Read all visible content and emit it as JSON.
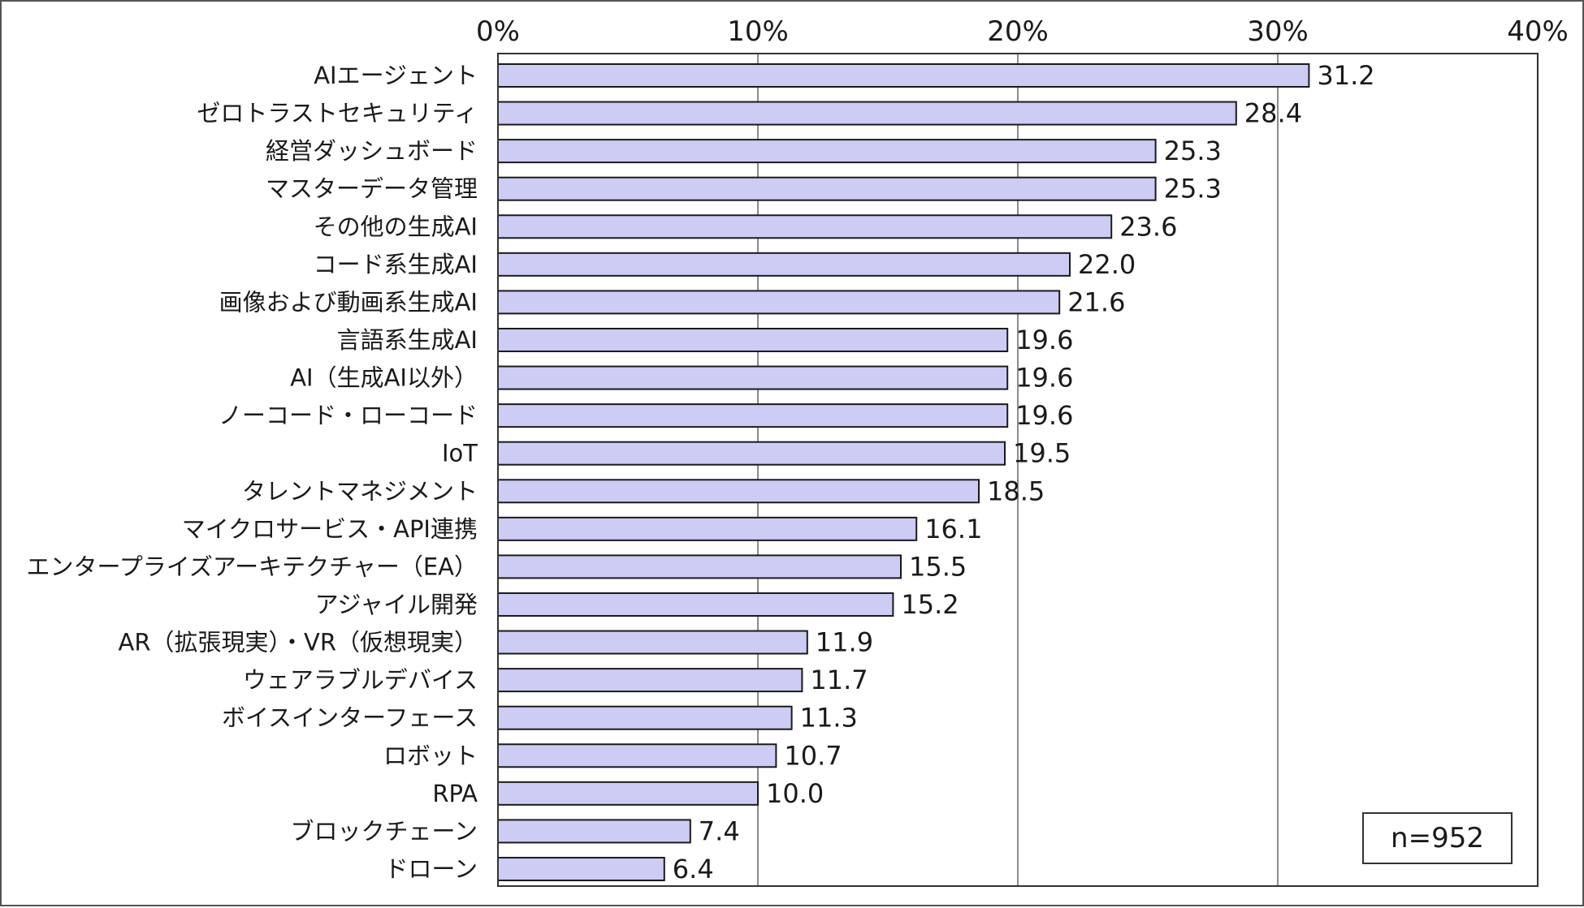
{
  "chart_data": {
    "type": "bar",
    "orientation": "horizontal",
    "categories": [
      "AIエージェント",
      "ゼロトラストセキュリティ",
      "経営ダッシュボード",
      "マスターデータ管理",
      "その他の生成AI",
      "コード系生成AI",
      "画像および動画系生成AI",
      "言語系生成AI",
      "AI（生成AI以外）",
      "ノーコード・ローコード",
      "IoT",
      "タレントマネジメント",
      "マイクロサービス・API連携",
      "エンタープライズアーキテクチャー（EA）",
      "アジャイル開発",
      "AR（拡張現実）・VR（仮想現実）",
      "ウェアラブルデバイス",
      "ボイスインターフェース",
      "ロボット",
      "RPA",
      "ブロックチェーン",
      "ドローン"
    ],
    "values": [
      31.2,
      28.4,
      25.3,
      25.3,
      23.6,
      22.0,
      21.6,
      19.6,
      19.6,
      19.6,
      19.5,
      18.5,
      16.1,
      15.5,
      15.2,
      11.9,
      11.7,
      11.3,
      10.7,
      10.0,
      7.4,
      6.4
    ],
    "value_labels": [
      "31.2",
      "28.4",
      "25.3",
      "25.3",
      "23.6",
      "22.0",
      "21.6",
      "19.6",
      "19.6",
      "19.6",
      "19.5",
      "18.5",
      "16.1",
      "15.5",
      "15.2",
      "11.9",
      "11.7",
      "11.3",
      "10.7",
      "10.0",
      "7.4",
      "6.4"
    ],
    "xlim": [
      0,
      40
    ],
    "x_ticks": [
      0,
      10,
      20,
      30,
      40
    ],
    "x_tick_labels": [
      "0%",
      "10%",
      "20%",
      "30%",
      "40%"
    ],
    "x_axis_position": "top",
    "grid": true,
    "title": "",
    "xlabel": "",
    "ylabel": "",
    "annotation": "n=952",
    "colors": {
      "bar_fill": "#ccccf5",
      "bar_stroke": "#1a1a1a",
      "grid": "#8c8c8c"
    }
  }
}
